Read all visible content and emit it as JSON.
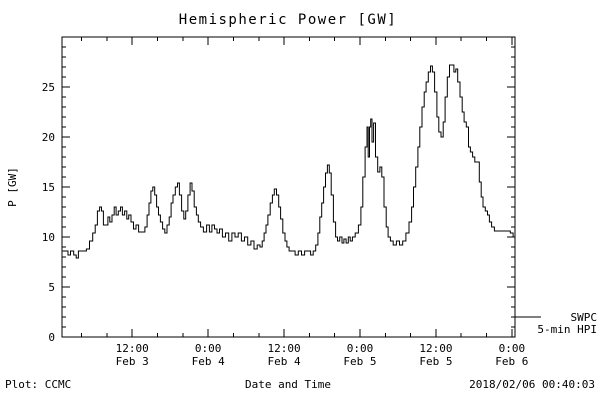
{
  "chart_data": {
    "type": "line",
    "title": "Hemispheric Power [GW]",
    "xlabel": "Date and Time",
    "ylabel": "P [GW]",
    "ylim": [
      0,
      30
    ],
    "xlim_hours": [
      0.9,
      72.5
    ],
    "grid": false,
    "line_color": "#000000",
    "background_color": "#ffffff",
    "y_ticks": [
      0,
      5,
      10,
      15,
      20,
      25
    ],
    "x_ticks": [
      {
        "hour": 12,
        "time": "12:00",
        "date": "Feb 3"
      },
      {
        "hour": 24,
        "time": "0:00",
        "date": "Feb 4"
      },
      {
        "hour": 36,
        "time": "12:00",
        "date": "Feb 4"
      },
      {
        "hour": 48,
        "time": "0:00",
        "date": "Feb 5"
      },
      {
        "hour": 60,
        "time": "12:00",
        "date": "Feb 5"
      },
      {
        "hour": 72,
        "time": "0:00",
        "date": "Feb 6"
      }
    ],
    "legend": {
      "line1": "SWPC",
      "line2": "5-min HPI"
    },
    "series": [
      {
        "name": "SWPC 5-min HPI",
        "x_hours": [
          1.0,
          1.7,
          2.0,
          2.5,
          3.0,
          3.3,
          3.7,
          4.5,
          5.0,
          5.5,
          6.0,
          6.3,
          6.7,
          7.0,
          7.3,
          7.6,
          8.0,
          8.3,
          8.6,
          9.0,
          9.3,
          9.6,
          10.0,
          10.3,
          10.6,
          11.0,
          11.3,
          11.6,
          12.0,
          12.4,
          12.8,
          13.2,
          13.8,
          14.2,
          14.5,
          14.8,
          15.1,
          15.4,
          15.7,
          16.0,
          16.3,
          16.6,
          17.0,
          17.3,
          17.7,
          18.0,
          18.3,
          18.6,
          19.0,
          19.3,
          19.6,
          20.0,
          20.3,
          20.6,
          21.0,
          21.3,
          21.6,
          22.0,
          22.3,
          22.6,
          23.0,
          23.5,
          24.0,
          24.4,
          24.8,
          25.2,
          25.6,
          26.0,
          26.5,
          27.0,
          27.5,
          28.0,
          28.5,
          29.0,
          29.5,
          30.0,
          30.5,
          31.0,
          31.5,
          32.0,
          32.4,
          32.7,
          33.0,
          33.3,
          33.6,
          34.0,
          34.3,
          34.6,
          35.0,
          35.3,
          35.6,
          36.0,
          36.3,
          36.6,
          37.0,
          37.5,
          38.0,
          38.5,
          39.0,
          39.5,
          40.0,
          40.4,
          40.8,
          41.2,
          41.5,
          41.8,
          42.1,
          42.4,
          42.7,
          43.0,
          43.3,
          43.6,
          44.0,
          44.3,
          44.6,
          45.0,
          45.3,
          45.6,
          46.0,
          46.3,
          46.6,
          47.0,
          47.5,
          48.0,
          48.3,
          48.6,
          49.0,
          49.2,
          49.4,
          49.6,
          49.8,
          50.0,
          50.3,
          50.6,
          51.0,
          51.3,
          51.6,
          52.0,
          52.3,
          52.6,
          53.0,
          53.5,
          54.0,
          54.5,
          55.0,
          55.5,
          56.0,
          56.3,
          56.6,
          57.0,
          57.3,
          57.6,
          58.0,
          58.3,
          58.6,
          59.0,
          59.3,
          59.6,
          60.0,
          60.3,
          60.6,
          61.0,
          61.3,
          61.6,
          62.0,
          62.3,
          62.7,
          63.0,
          63.3,
          63.6,
          64.0,
          64.3,
          64.6,
          65.0,
          65.3,
          65.6,
          66.0,
          66.3,
          66.7,
          67.0,
          67.3,
          67.6,
          68.0,
          68.3,
          68.6,
          69.0,
          69.5,
          70.0,
          71.0,
          71.5,
          72.0,
          72.4
        ],
        "values": [
          8.6,
          8.6,
          8.2,
          8.6,
          8.2,
          7.9,
          8.6,
          8.6,
          8.8,
          9.6,
          10.4,
          11.2,
          12.6,
          13.0,
          12.6,
          11.2,
          11.2,
          12.0,
          11.5,
          12.2,
          13.0,
          12.2,
          12.6,
          13.0,
          12.2,
          12.6,
          11.8,
          12.2,
          11.5,
          10.8,
          11.2,
          10.5,
          10.5,
          11.0,
          12.2,
          13.4,
          14.6,
          15.0,
          14.2,
          13.0,
          12.2,
          11.5,
          10.8,
          10.4,
          11.2,
          12.0,
          13.4,
          14.2,
          15.0,
          15.4,
          14.2,
          12.6,
          11.8,
          12.6,
          14.2,
          15.4,
          14.6,
          13.0,
          12.2,
          11.5,
          11.0,
          10.5,
          11.2,
          10.5,
          11.2,
          10.8,
          10.4,
          10.8,
          10.0,
          10.4,
          9.6,
          10.4,
          10.0,
          10.4,
          9.6,
          10.0,
          9.2,
          9.6,
          8.8,
          9.2,
          9.0,
          9.6,
          10.4,
          11.2,
          12.2,
          13.4,
          14.2,
          14.8,
          14.2,
          13.0,
          11.8,
          10.4,
          9.6,
          9.0,
          8.6,
          8.6,
          8.2,
          8.6,
          8.2,
          8.6,
          8.6,
          8.2,
          8.6,
          9.2,
          10.4,
          12.0,
          13.4,
          15.0,
          16.4,
          17.2,
          16.4,
          14.2,
          11.5,
          10.0,
          9.6,
          10.0,
          9.4,
          9.8,
          9.4,
          10.0,
          9.6,
          10.0,
          10.4,
          11.2,
          13.0,
          16.0,
          19.0,
          21.0,
          18.0,
          21.0,
          21.8,
          19.5,
          21.4,
          18.0,
          16.5,
          17.0,
          16.0,
          13.0,
          11.0,
          10.0,
          9.6,
          9.2,
          9.6,
          9.2,
          9.6,
          10.4,
          11.5,
          13.0,
          15.0,
          17.0,
          19.0,
          21.0,
          23.0,
          24.5,
          25.5,
          26.5,
          27.1,
          26.5,
          24.5,
          22.0,
          20.5,
          20.0,
          21.5,
          24.0,
          26.0,
          27.2,
          27.2,
          26.5,
          26.8,
          25.5,
          24.0,
          22.5,
          21.5,
          21.0,
          19.0,
          18.5,
          18.0,
          17.5,
          17.5,
          15.5,
          14.0,
          13.0,
          12.6,
          12.2,
          11.5,
          11.0,
          10.6,
          10.6,
          10.6,
          10.6,
          10.4,
          10.0
        ]
      }
    ]
  },
  "footer": {
    "left": "Plot: CCMC",
    "right": "2018/02/06 00:40:03"
  }
}
